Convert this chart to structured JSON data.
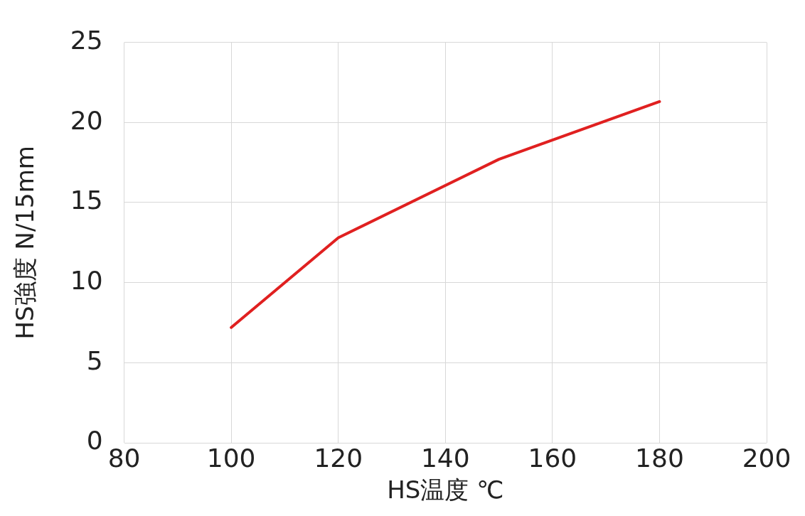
{
  "chart_data": {
    "type": "line",
    "xlabel": "HS温度 ℃",
    "ylabel": "HS強度 N/15mm",
    "series": [
      {
        "color": "#e02020",
        "x": [
          100,
          120,
          150,
          180
        ],
        "values": [
          7.2,
          12.8,
          17.7,
          21.3
        ]
      }
    ],
    "xlim": [
      80,
      200
    ],
    "xticks": [
      80,
      100,
      120,
      140,
      160,
      180,
      200
    ],
    "ylim": [
      0,
      25
    ],
    "yticks": [
      0,
      5,
      10,
      15,
      20,
      25
    ],
    "grid": true,
    "legend": false,
    "marker": "none",
    "line_style": "solid"
  }
}
